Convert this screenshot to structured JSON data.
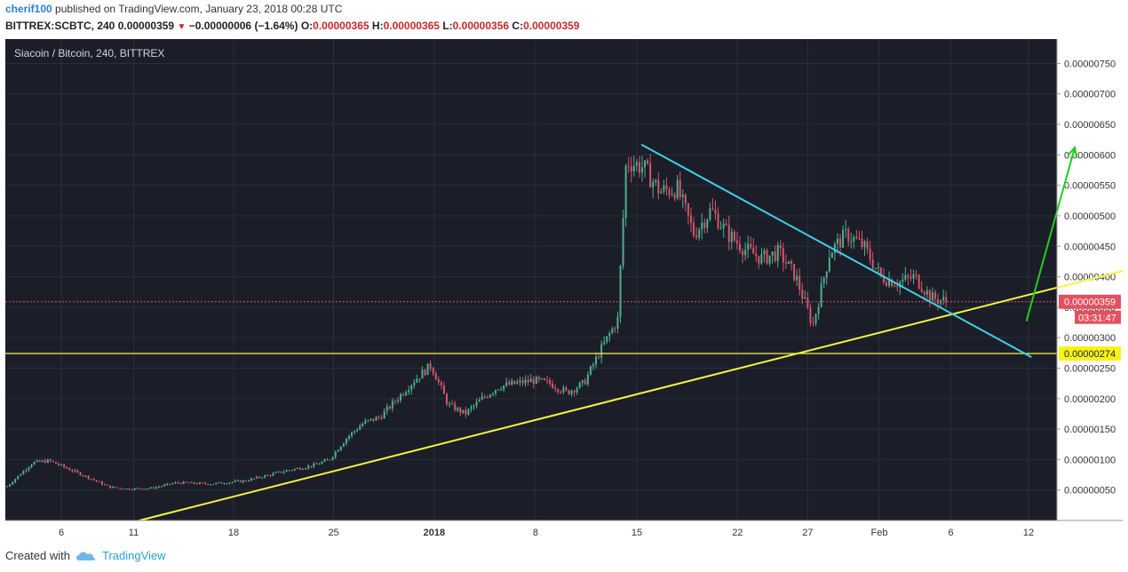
{
  "header": {
    "author": "cherif100",
    "published_text": "published on TradingView.com, January 23, 2018 00:28 UTC",
    "symbol": "BITTREX:SCBTC, 240",
    "last": "0.00000359",
    "change": "−0.00000006 (−1.64%)",
    "o_label": "O:",
    "o_value": "0.00000365",
    "h_label": "H:",
    "h_value": "0.00000365",
    "l_label": "L:",
    "l_value": "0.00000356",
    "c_label": "C:",
    "c_value": "0.00000359"
  },
  "footer": {
    "created_with": "Created with",
    "brand": "TradingView"
  },
  "chart_data": {
    "type": "candlestick",
    "title": "Siacoin / Bitcoin, 240, BITTREX",
    "y_ticks": [
      "0.00000750",
      "0.00000700",
      "0.00000650",
      "0.00000600",
      "0.00000550",
      "0.00000500",
      "0.00000450",
      "0.00000400",
      "0.00000350",
      "0.00000300",
      "0.00000250",
      "0.00000200",
      "0.00000150",
      "0.00000100",
      "0.00000050"
    ],
    "x_ticks": [
      "6",
      "11",
      "18",
      "25",
      "2018",
      "8",
      "15",
      "22",
      "27",
      "Feb",
      "6",
      "12"
    ],
    "ylim": [
      0.0,
      7.9e-06
    ],
    "current_price": "0.00000359",
    "countdown": "03:31:47",
    "horizontal_level": "0.00000274",
    "price_path": [
      [
        0,
        5.6e-07
      ],
      [
        3,
        9.5e-07
      ],
      [
        5,
        9.8e-07
      ],
      [
        8,
        8e-07
      ],
      [
        10,
        6.8e-07
      ],
      [
        12,
        5.5e-07
      ],
      [
        14,
        5.2e-07
      ],
      [
        17,
        5.3e-07
      ],
      [
        20,
        6.2e-07
      ],
      [
        24,
        6e-07
      ],
      [
        28,
        6.5e-07
      ],
      [
        31,
        7.5e-07
      ],
      [
        33,
        8.2e-07
      ],
      [
        36,
        9e-07
      ],
      [
        38,
        1e-06
      ],
      [
        40,
        1.35e-06
      ],
      [
        42,
        1.6e-06
      ],
      [
        44,
        1.7e-06
      ],
      [
        46,
        2e-06
      ],
      [
        48,
        2.3e-06
      ],
      [
        50,
        2.55e-06
      ],
      [
        52,
        1.9e-06
      ],
      [
        54,
        1.75e-06
      ],
      [
        56,
        2e-06
      ],
      [
        58,
        2.2e-06
      ],
      [
        60,
        2.25e-06
      ],
      [
        62,
        2.3e-06
      ],
      [
        64,
        2.25e-06
      ],
      [
        66,
        2.1e-06
      ],
      [
        68,
        2.25e-06
      ],
      [
        70,
        2.8e-06
      ],
      [
        72,
        3.3e-06
      ],
      [
        73,
        5.9e-06
      ],
      [
        75,
        5.8e-06
      ],
      [
        77,
        5.4e-06
      ],
      [
        79,
        5.45e-06
      ],
      [
        81,
        4.7e-06
      ],
      [
        83,
        5.1e-06
      ],
      [
        85,
        4.7e-06
      ],
      [
        87,
        4.45e-06
      ],
      [
        89,
        4.3e-06
      ],
      [
        91,
        4.4e-06
      ],
      [
        93,
        4e-06
      ],
      [
        95,
        3.2e-06
      ],
      [
        97,
        4.4e-06
      ],
      [
        99,
        4.7e-06
      ],
      [
        101,
        4.5e-06
      ],
      [
        103,
        4e-06
      ],
      [
        105,
        3.9e-06
      ],
      [
        107,
        4e-06
      ],
      [
        109,
        3.65e-06
      ],
      [
        111,
        3.59e-06
      ]
    ],
    "drawn_lines": [
      {
        "name": "rising-support",
        "color": "#f5f542",
        "points": [
          [
            15.8,
            0.0
          ],
          [
            162.2,
            5.17e-06
          ]
        ]
      },
      {
        "name": "falling-resistance",
        "color": "#3fd0e8",
        "points": [
          [
            75.0,
            6.17e-06
          ],
          [
            121.0,
            2.68e-06
          ]
        ]
      },
      {
        "name": "target-arrow",
        "color": "#22cc22",
        "points": [
          [
            120.4,
            3.27e-06
          ],
          [
            126.1,
            6.12e-06
          ]
        ]
      }
    ],
    "colors": {
      "up": "#4fae8f",
      "down": "#d9546a",
      "background": "#1b1e28",
      "grid": "#2b2f3b"
    }
  }
}
